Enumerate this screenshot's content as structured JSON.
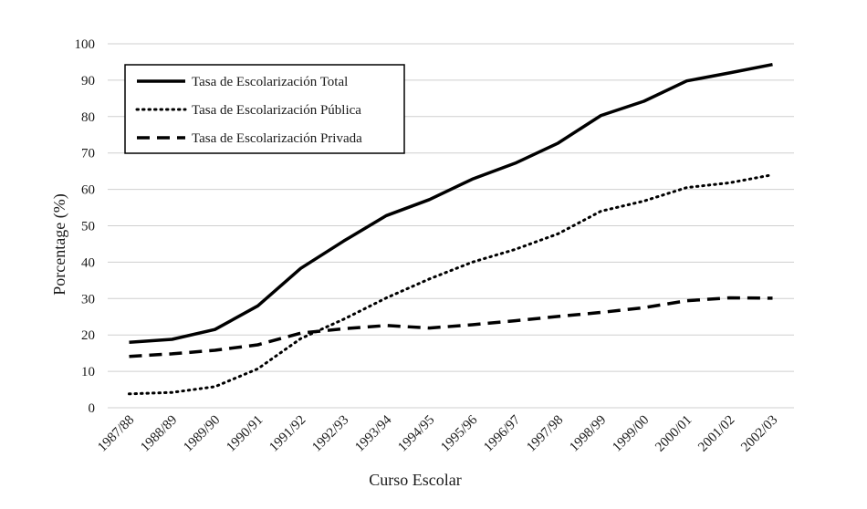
{
  "chart_data": {
    "type": "line",
    "title": "",
    "xlabel": "Curso Escolar",
    "ylabel": "Porcentage (%)",
    "ylim": [
      0,
      100
    ],
    "yticks": [
      0,
      10,
      20,
      30,
      40,
      50,
      60,
      70,
      80,
      90,
      100
    ],
    "grid": true,
    "legend_position": "top-left",
    "categories": [
      "1987/88",
      "1988/89",
      "1989/90",
      "1990/91",
      "1991/92",
      "1992/93",
      "1993/94",
      "1994/95",
      "1995/96",
      "1996/97",
      "1997/98",
      "1998/99",
      "1999/00",
      "2000/01",
      "2001/02",
      "2002/03"
    ],
    "series": [
      {
        "name": "Tasa de Escolarización Total",
        "style": "solid",
        "color": "#000000",
        "values": [
          18,
          18.8,
          21.5,
          28,
          38.3,
          45.8,
          52.8,
          57.2,
          62.8,
          67.2,
          72.7,
          80.3,
          84.2,
          89.8,
          92,
          94.3
        ]
      },
      {
        "name": "Tasa de Escolarización Pública",
        "style": "dotted",
        "color": "#000000",
        "values": [
          3.8,
          4.2,
          5.8,
          10.7,
          19,
          24.3,
          30.2,
          35.4,
          40,
          43.5,
          47.8,
          54,
          56.8,
          60.5,
          61.8,
          64
        ]
      },
      {
        "name": "Tasa de Escolarización Privada",
        "style": "dashed",
        "color": "#000000",
        "values": [
          14.1,
          14.8,
          15.8,
          17.3,
          20.5,
          21.7,
          22.6,
          21.9,
          22.8,
          23.9,
          25.1,
          26.2,
          27.5,
          29.4,
          30.2,
          30.1
        ]
      }
    ]
  }
}
